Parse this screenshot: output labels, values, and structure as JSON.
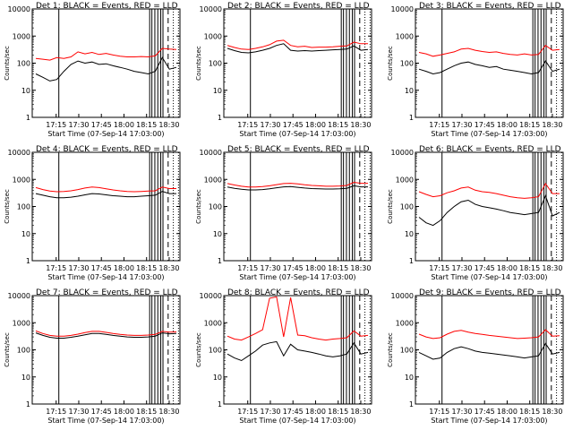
{
  "chart_data": [
    {
      "type": "line",
      "title": "Det 1: BLACK = Events, RED = LLD",
      "xlabel": "Start Time (07-Sep-14 17:03:00)",
      "ylabel": "Counts/sec",
      "x_ticks": [
        "17:15",
        "17:30",
        "17:45",
        "18:00",
        "18:15",
        "18:30"
      ],
      "y_ticks": [
        "1",
        "10",
        "100",
        "1000",
        "10000"
      ],
      "ylim": [
        1,
        10000
      ],
      "log_y": true,
      "series": [
        {
          "color": "#ff0000",
          "values": [
            150,
            140,
            130,
            160,
            150,
            170,
            260,
            220,
            250,
            210,
            230,
            200,
            180,
            170,
            170,
            175,
            170,
            185,
            350,
            330,
            320
          ]
        },
        {
          "color": "#000000",
          "values": [
            40,
            30,
            22,
            25,
            50,
            90,
            120,
            100,
            110,
            90,
            95,
            80,
            70,
            60,
            50,
            45,
            40,
            50,
            160,
            60,
            70
          ]
        }
      ]
    },
    {
      "type": "line",
      "title": "Det 2: BLACK = Events, RED = LLD",
      "xlabel": "Start Time (07-Sep-14 17:03:00)",
      "ylabel": "Counts/sec",
      "x_ticks": [
        "17:15",
        "17:30",
        "17:45",
        "18:00",
        "18:15",
        "18:30"
      ],
      "y_ticks": [
        "1",
        "10",
        "100",
        "1000",
        "10000"
      ],
      "ylim": [
        1,
        10000
      ],
      "log_y": true,
      "series": [
        {
          "color": "#ff0000",
          "values": [
            450,
            380,
            330,
            320,
            350,
            400,
            480,
            650,
            700,
            450,
            400,
            420,
            380,
            390,
            390,
            400,
            420,
            430,
            600,
            520,
            520
          ]
        },
        {
          "color": "#000000",
          "values": [
            350,
            290,
            250,
            240,
            260,
            300,
            350,
            450,
            520,
            300,
            280,
            290,
            280,
            290,
            300,
            310,
            320,
            330,
            430,
            300,
            320
          ]
        }
      ]
    },
    {
      "type": "line",
      "title": "Det 3: BLACK = Events, RED = LLD",
      "xlabel": "Start Time (07-Sep-14 17:03:00)",
      "ylabel": "Counts/sec",
      "x_ticks": [
        "17:15",
        "17:30",
        "17:45",
        "18:00",
        "18:15",
        "18:30"
      ],
      "y_ticks": [
        "1",
        "10",
        "100",
        "1000",
        "10000"
      ],
      "ylim": [
        1,
        10000
      ],
      "log_y": true,
      "series": [
        {
          "color": "#ff0000",
          "values": [
            250,
            220,
            180,
            200,
            230,
            260,
            330,
            350,
            300,
            270,
            250,
            260,
            230,
            210,
            200,
            220,
            200,
            210,
            450,
            300,
            320
          ]
        },
        {
          "color": "#000000",
          "values": [
            60,
            50,
            40,
            45,
            60,
            80,
            100,
            110,
            90,
            80,
            70,
            75,
            60,
            55,
            50,
            45,
            40,
            45,
            120,
            50,
            60
          ]
        }
      ]
    },
    {
      "type": "line",
      "title": "Det 4: BLACK = Events, RED = LLD",
      "xlabel": "Start Time (07-Sep-14 17:03:00)",
      "ylabel": "Counts/sec",
      "x_ticks": [
        "17:15",
        "17:30",
        "17:45",
        "18:00",
        "18:15",
        "18:30"
      ],
      "y_ticks": [
        "1",
        "10",
        "100",
        "1000",
        "10000"
      ],
      "ylim": [
        1,
        10000
      ],
      "log_y": true,
      "series": [
        {
          "color": "#ff0000",
          "values": [
            500,
            420,
            370,
            350,
            360,
            380,
            420,
            480,
            520,
            500,
            450,
            410,
            380,
            360,
            350,
            360,
            370,
            380,
            520,
            460,
            460
          ]
        },
        {
          "color": "#000000",
          "values": [
            300,
            260,
            230,
            210,
            210,
            220,
            240,
            270,
            300,
            290,
            270,
            250,
            240,
            230,
            230,
            240,
            250,
            260,
            360,
            300,
            300
          ]
        }
      ]
    },
    {
      "type": "line",
      "title": "Det 5: BLACK = Events, RED = LLD",
      "xlabel": "Start Time (07-Sep-14 17:03:00)",
      "ylabel": "Counts/sec",
      "x_ticks": [
        "17:15",
        "17:30",
        "17:45",
        "18:00",
        "18:15",
        "18:30"
      ],
      "y_ticks": [
        "1",
        "10",
        "100",
        "1000",
        "10000"
      ],
      "ylim": [
        1,
        10000
      ],
      "log_y": true,
      "series": [
        {
          "color": "#ff0000",
          "values": [
            700,
            620,
            560,
            520,
            520,
            540,
            580,
            640,
            700,
            720,
            680,
            630,
            600,
            580,
            560,
            560,
            570,
            600,
            780,
            720,
            720
          ]
        },
        {
          "color": "#000000",
          "values": [
            520,
            470,
            430,
            410,
            410,
            420,
            450,
            490,
            530,
            540,
            510,
            480,
            460,
            450,
            440,
            440,
            450,
            470,
            580,
            530,
            530
          ]
        }
      ]
    },
    {
      "type": "line",
      "title": "Det 6: BLACK = Events, RED = LLD",
      "xlabel": "Start Time (07-Sep-14 17:03:00)",
      "ylabel": "Counts/sec",
      "x_ticks": [
        "17:15",
        "17:30",
        "17:45",
        "18:00",
        "18:15",
        "18:30"
      ],
      "y_ticks": [
        "1",
        "10",
        "100",
        "1000",
        "10000"
      ],
      "ylim": [
        1,
        10000
      ],
      "log_y": true,
      "series": [
        {
          "color": "#ff0000",
          "values": [
            350,
            280,
            230,
            250,
            320,
            380,
            480,
            520,
            400,
            350,
            330,
            300,
            260,
            230,
            210,
            200,
            210,
            230,
            700,
            300,
            300
          ]
        },
        {
          "color": "#000000",
          "values": [
            40,
            25,
            20,
            30,
            60,
            100,
            150,
            170,
            120,
            100,
            90,
            80,
            70,
            60,
            55,
            50,
            55,
            60,
            250,
            45,
            60
          ]
        }
      ]
    },
    {
      "type": "line",
      "title": "Det 7: BLACK = Events, RED = LLD",
      "xlabel": "Start Time (07-Sep-14 17:03:00)",
      "ylabel": "Counts/sec",
      "x_ticks": [
        "17:15",
        "17:30",
        "17:45",
        "18:00",
        "18:15",
        "18:30"
      ],
      "y_ticks": [
        "1",
        "10",
        "100",
        "1000",
        "10000"
      ],
      "ylim": [
        1,
        10000
      ],
      "log_y": true,
      "series": [
        {
          "color": "#ff0000",
          "values": [
            500,
            400,
            340,
            320,
            320,
            340,
            380,
            430,
            480,
            480,
            440,
            400,
            370,
            350,
            340,
            340,
            350,
            370,
            480,
            450,
            460
          ]
        },
        {
          "color": "#000000",
          "values": [
            420,
            340,
            290,
            270,
            270,
            290,
            320,
            360,
            400,
            400,
            370,
            340,
            320,
            300,
            290,
            290,
            300,
            320,
            420,
            390,
            400
          ]
        }
      ]
    },
    {
      "type": "line",
      "title": "Det 8: BLACK = Events, RED = LLD",
      "xlabel": "Start Time (07-Sep-14 17:03:00)",
      "ylabel": "Counts/sec",
      "x_ticks": [
        "17:15",
        "17:30",
        "17:45",
        "18:00",
        "18:15",
        "18:30"
      ],
      "y_ticks": [
        "1",
        "10",
        "100",
        "1000",
        "10000"
      ],
      "ylim": [
        1,
        10000
      ],
      "log_y": true,
      "series": [
        {
          "color": "#ff0000",
          "values": [
            320,
            250,
            230,
            300,
            400,
            550,
            8000,
            9000,
            300,
            8500,
            350,
            330,
            280,
            250,
            230,
            250,
            260,
            280,
            500,
            320,
            340
          ]
        },
        {
          "color": "#000000",
          "values": [
            70,
            50,
            40,
            60,
            90,
            150,
            180,
            200,
            60,
            160,
            100,
            90,
            80,
            70,
            60,
            55,
            60,
            70,
            180,
            70,
            80
          ]
        }
      ]
    },
    {
      "type": "line",
      "title": "Det 9: BLACK = Events, RED = LLD",
      "xlabel": "Start Time (07-Sep-14 17:03:00)",
      "ylabel": "Counts/sec",
      "x_ticks": [
        "17:15",
        "17:30",
        "17:45",
        "18:00",
        "18:15",
        "18:30"
      ],
      "y_ticks": [
        "1",
        "10",
        "100",
        "1000",
        "10000"
      ],
      "ylim": [
        1,
        10000
      ],
      "log_y": true,
      "series": [
        {
          "color": "#ff0000",
          "values": [
            380,
            300,
            260,
            280,
            380,
            480,
            520,
            450,
            400,
            370,
            340,
            320,
            300,
            280,
            260,
            270,
            280,
            300,
            550,
            320,
            330
          ]
        },
        {
          "color": "#000000",
          "values": [
            80,
            60,
            45,
            50,
            80,
            110,
            130,
            110,
            90,
            80,
            75,
            70,
            65,
            60,
            55,
            50,
            55,
            60,
            170,
            70,
            80
          ]
        }
      ]
    }
  ]
}
